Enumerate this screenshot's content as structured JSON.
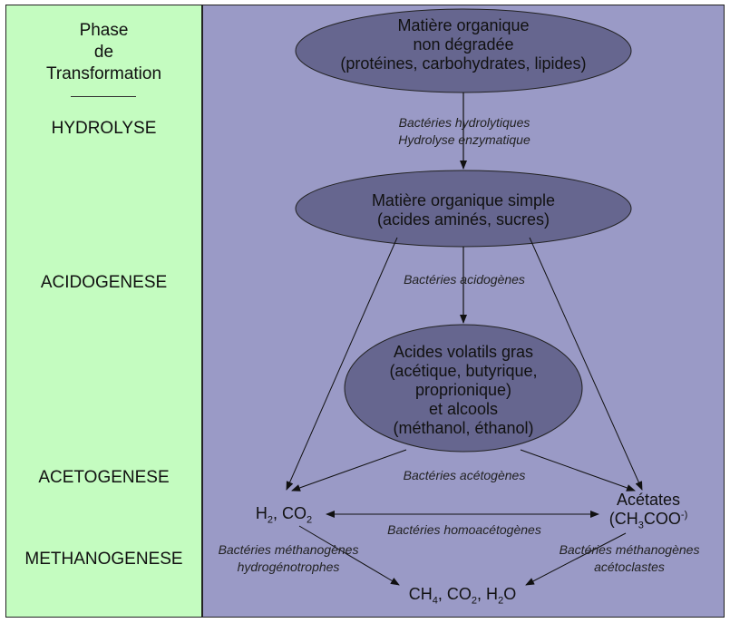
{
  "phases": {
    "title_line1": "Phase",
    "title_line2": "de",
    "title_line3": "Transformation",
    "hydrolyse": "HYDROLYSE",
    "acidogenese": "ACIDOGENESE",
    "acetogenese": "ACETOGENESE",
    "methanogenese": "METHANOGENESE"
  },
  "nodes": {
    "organic": {
      "line1": "Matière organique",
      "line2": "non dégradée",
      "line3": "(protéines, carbohydrates, lipides)"
    },
    "simple": {
      "line1": "Matière organique simple",
      "line2": "(acides aminés, sucres)"
    },
    "volatile": {
      "line1": "Acides volatils gras",
      "line2": "(acétique, butyrique,",
      "line3": "proprionique)",
      "line4": "et alcools",
      "line5": "(méthanol, éthanol)"
    }
  },
  "labels": {
    "hydrolytic1": "Bactéries hydrolytiques",
    "hydrolytic2": "Hydrolyse enzymatique",
    "acidogenic": "Bactéries acidogènes",
    "acetogenic": "Bactéries acétogènes",
    "homoacetogenic": "Bactéries homoacétogènes",
    "methano_h1": "Bactéries méthanogènes",
    "methano_h2": "hydrogénotrophes",
    "methano_a1": "Bactéries méthanogènes",
    "methano_a2": "acétoclastes"
  },
  "products": {
    "h2_co2": {
      "h": "H",
      "s1": "2",
      "co": ", CO",
      "s2": "2"
    },
    "acetates": {
      "label": "Acétates",
      "f1": "(CH",
      "s1": "3",
      "f2": "COO",
      "sup": "-)"
    },
    "final": {
      "p1": "CH",
      "s1": "4",
      "p2": ", CO",
      "s2": "2",
      "p3": ", H",
      "s3": "2",
      "p4": "O"
    }
  },
  "colors": {
    "left_bg": "#c4fcc0",
    "right_bg": "#9a9ac6",
    "ellipse_fill": "#66668f"
  }
}
